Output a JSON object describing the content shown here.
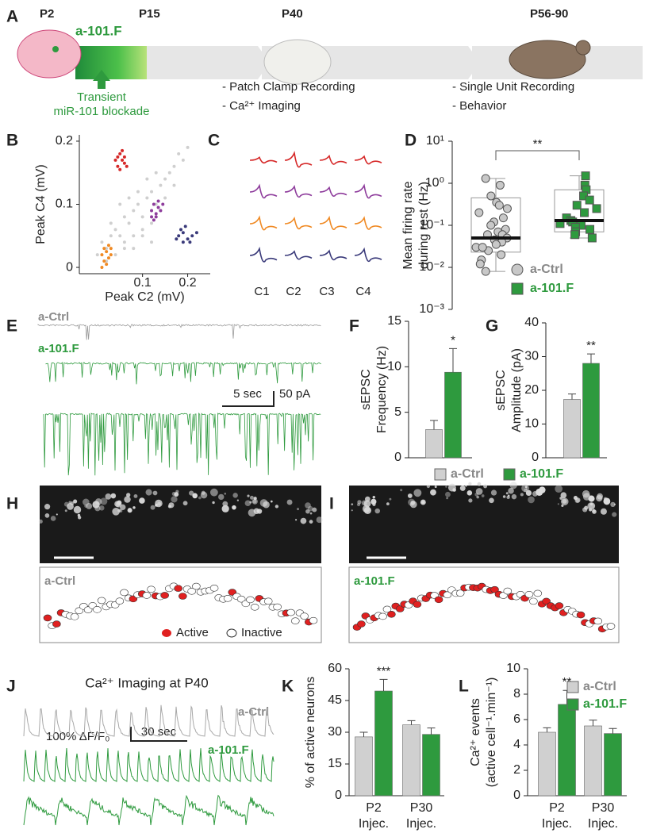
{
  "panel_labels": [
    "A",
    "B",
    "C",
    "D",
    "E",
    "F",
    "G",
    "H",
    "I",
    "J",
    "K",
    "L"
  ],
  "timeline": {
    "stages": [
      "P2",
      "P15",
      "P40",
      "P56-90"
    ],
    "treatment": "a-101.F",
    "blockade": [
      "Transient",
      "miR-101 blockade"
    ],
    "p40_methods": [
      "- Patch Clamp Recording",
      "- Ca²⁺ Imaging"
    ],
    "adult_methods": [
      "- Single Unit Recording",
      "- Behavior"
    ]
  },
  "channels": [
    "C1",
    "C2",
    "C3",
    "C4"
  ],
  "traces": {
    "ctrl": "a-Ctrl",
    "treated": "a-101.F",
    "time_scale": "5 sec",
    "amp_scale": "50 pA"
  },
  "imaging": {
    "ctrl": "a-Ctrl",
    "treated": "a-101.F",
    "active": "Active",
    "inactive": "Inactive"
  },
  "calcium": {
    "title": "Ca²⁺ Imaging at P40",
    "ctrl": "a-Ctrl",
    "treated": "a-101.F",
    "amp_scale": "100% ΔF/F₀",
    "time_scale": "30 sec"
  },
  "chart_data": [
    {
      "type": "scatter",
      "xlabel": "Peak C2 (mV)",
      "ylabel": "Peak C4 (mV)",
      "xlim": [
        -0.04,
        0.25
      ],
      "ylim": [
        -0.01,
        0.21
      ],
      "xticks": [
        0.1,
        0.2
      ],
      "yticks": [
        0,
        0.1,
        0.2
      ],
      "series": [
        {
          "color": "#cfcfcf",
          "x": [
            0.0,
            0.01,
            0.02,
            0.03,
            0.04,
            0.05,
            0.06,
            0.07,
            0.08,
            0.09,
            0.1,
            0.11,
            0.12,
            0.13,
            0.14,
            0.15,
            0.16,
            0.17,
            0.18,
            0.02,
            0.04,
            0.06,
            0.08,
            0.1,
            0.12,
            0.14,
            0.05,
            0.07,
            0.09,
            0.11,
            0.13,
            0.03,
            0.15,
            0.17,
            0.06,
            0.08,
            0.1,
            0.12,
            0.19,
            0.2
          ],
          "values": [
            0.02,
            0.04,
            0.03,
            0.05,
            0.06,
            0.05,
            0.08,
            0.07,
            0.09,
            0.1,
            0.08,
            0.11,
            0.12,
            0.1,
            0.13,
            0.14,
            0.15,
            0.16,
            0.18,
            0.01,
            0.02,
            0.04,
            0.05,
            0.06,
            0.07,
            0.09,
            0.1,
            0.11,
            0.12,
            0.14,
            0.15,
            0.07,
            0.11,
            0.13,
            0.03,
            0.03,
            0.05,
            0.04,
            0.17,
            0.19
          ]
        },
        {
          "color": "#d62828",
          "x": [
            0.04,
            0.045,
            0.05,
            0.055,
            0.06,
            0.05,
            0.045,
            0.055,
            0.06,
            0.065
          ],
          "values": [
            0.17,
            0.16,
            0.18,
            0.17,
            0.165,
            0.155,
            0.175,
            0.185,
            0.175,
            0.16
          ]
        },
        {
          "color": "#8e3c9c",
          "x": [
            0.12,
            0.125,
            0.13,
            0.135,
            0.14,
            0.13,
            0.125,
            0.145,
            0.12,
            0.135
          ],
          "values": [
            0.09,
            0.1,
            0.085,
            0.095,
            0.09,
            0.08,
            0.075,
            0.1,
            0.08,
            0.105
          ]
        },
        {
          "color": "#3a3a7a",
          "x": [
            0.18,
            0.185,
            0.19,
            0.2,
            0.21,
            0.195,
            0.205,
            0.22,
            0.175,
            0.19
          ],
          "values": [
            0.05,
            0.06,
            0.055,
            0.045,
            0.05,
            0.065,
            0.04,
            0.055,
            0.045,
            0.04
          ]
        },
        {
          "color": "#f08a24",
          "x": [
            0.01,
            0.015,
            0.02,
            0.025,
            0.03,
            0.02,
            0.015,
            0.025,
            0.03,
            0.01
          ],
          "values": [
            0.02,
            0.01,
            0.025,
            0.015,
            0.03,
            0.005,
            0.03,
            0.035,
            0.02,
            0.0
          ]
        }
      ]
    },
    {
      "type": "box",
      "ylabel": [
        "Mean firing rate",
        "during rest (Hz)"
      ],
      "log_scale": true,
      "ylim": [
        0.001,
        10
      ],
      "yticks": [
        {
          "value": 10,
          "label": "10¹"
        },
        {
          "value": 1,
          "label": "10⁰"
        },
        {
          "value": 0.1,
          "label": "10⁻¹"
        },
        {
          "value": 0.01,
          "label": "10⁻²"
        },
        {
          "value": 0.001,
          "label": "10⁻³"
        }
      ],
      "significance": "**",
      "series": [
        {
          "name": "a-Ctrl",
          "color": "#c8c8c8",
          "marker": "circle",
          "whisker_low": 0.008,
          "q1": 0.023,
          "median": 0.05,
          "q3": 0.45,
          "whisker_high": 1.3,
          "points": [
            1.3,
            0.9,
            0.5,
            0.35,
            0.25,
            0.2,
            0.15,
            0.12,
            0.1,
            0.08,
            0.07,
            0.06,
            0.05,
            0.045,
            0.04,
            0.035,
            0.03,
            0.025,
            0.02,
            0.015,
            0.012,
            0.008,
            0.3,
            0.06,
            0.03
          ]
        },
        {
          "name": "a-101.F",
          "color": "#2e9a3e",
          "marker": "square",
          "whisker_low": 0.05,
          "q1": 0.07,
          "median": 0.13,
          "q3": 0.7,
          "whisker_high": 1.5,
          "points": [
            1.5,
            0.9,
            0.7,
            0.5,
            0.4,
            0.3,
            0.25,
            0.2,
            0.15,
            0.13,
            0.12,
            0.1,
            0.09,
            0.08,
            0.07,
            0.06,
            0.05,
            0.11
          ]
        }
      ]
    },
    {
      "type": "bar",
      "ylabel": [
        "sEPSC",
        "Frequency (Hz)"
      ],
      "ylim": [
        0,
        15
      ],
      "yticks": [
        0,
        5,
        10,
        15
      ],
      "significance": [
        "*"
      ],
      "series": [
        {
          "name": "a-Ctrl",
          "color": "#d0d0d0",
          "values": [
            3.1
          ],
          "errors": [
            1.0
          ]
        },
        {
          "name": "a-101.F",
          "color": "#2e9a3e",
          "values": [
            9.4
          ],
          "errors": [
            2.6
          ]
        }
      ]
    },
    {
      "type": "bar",
      "ylabel": [
        "sEPSC",
        "Amplitude (pA)"
      ],
      "ylim": [
        0,
        40
      ],
      "yticks": [
        0,
        10,
        20,
        30,
        40
      ],
      "significance": [
        "**"
      ],
      "series": [
        {
          "color": "#d0d0d0",
          "values": [
            17.3
          ],
          "errors": [
            1.6
          ]
        },
        {
          "color": "#2e9a3e",
          "values": [
            28.0
          ],
          "errors": [
            2.8
          ]
        }
      ]
    },
    {
      "type": "bar",
      "ylabel": [
        "% of active neurons"
      ],
      "categories": [
        "P2 Injec.",
        "P30 Injec."
      ],
      "ylim": [
        0,
        60
      ],
      "yticks": [
        0,
        15,
        30,
        45,
        60
      ],
      "significance": [
        "***",
        null
      ],
      "series": [
        {
          "color": "#d0d0d0",
          "values": [
            27.8,
            33.5
          ],
          "errors": [
            2.2,
            2.0
          ]
        },
        {
          "color": "#2e9a3e",
          "values": [
            49.5,
            29.0
          ],
          "errors": [
            5.5,
            3.0
          ]
        }
      ]
    },
    {
      "type": "bar",
      "ylabel": [
        "Ca²⁺ events",
        "(active cell⁻¹.min⁻¹)"
      ],
      "categories": [
        "P2 Injec.",
        "P30 Injec."
      ],
      "ylim": [
        0,
        10
      ],
      "yticks": [
        0,
        2,
        4,
        6,
        8,
        10
      ],
      "significance": [
        "**",
        null
      ],
      "series": [
        {
          "name": "a-Ctrl",
          "color": "#d0d0d0",
          "values": [
            5.0,
            5.5
          ],
          "errors": [
            0.35,
            0.45
          ]
        },
        {
          "name": "a-101.F",
          "color": "#2e9a3e",
          "values": [
            7.2,
            4.9
          ],
          "errors": [
            1.1,
            0.4
          ]
        }
      ]
    }
  ]
}
